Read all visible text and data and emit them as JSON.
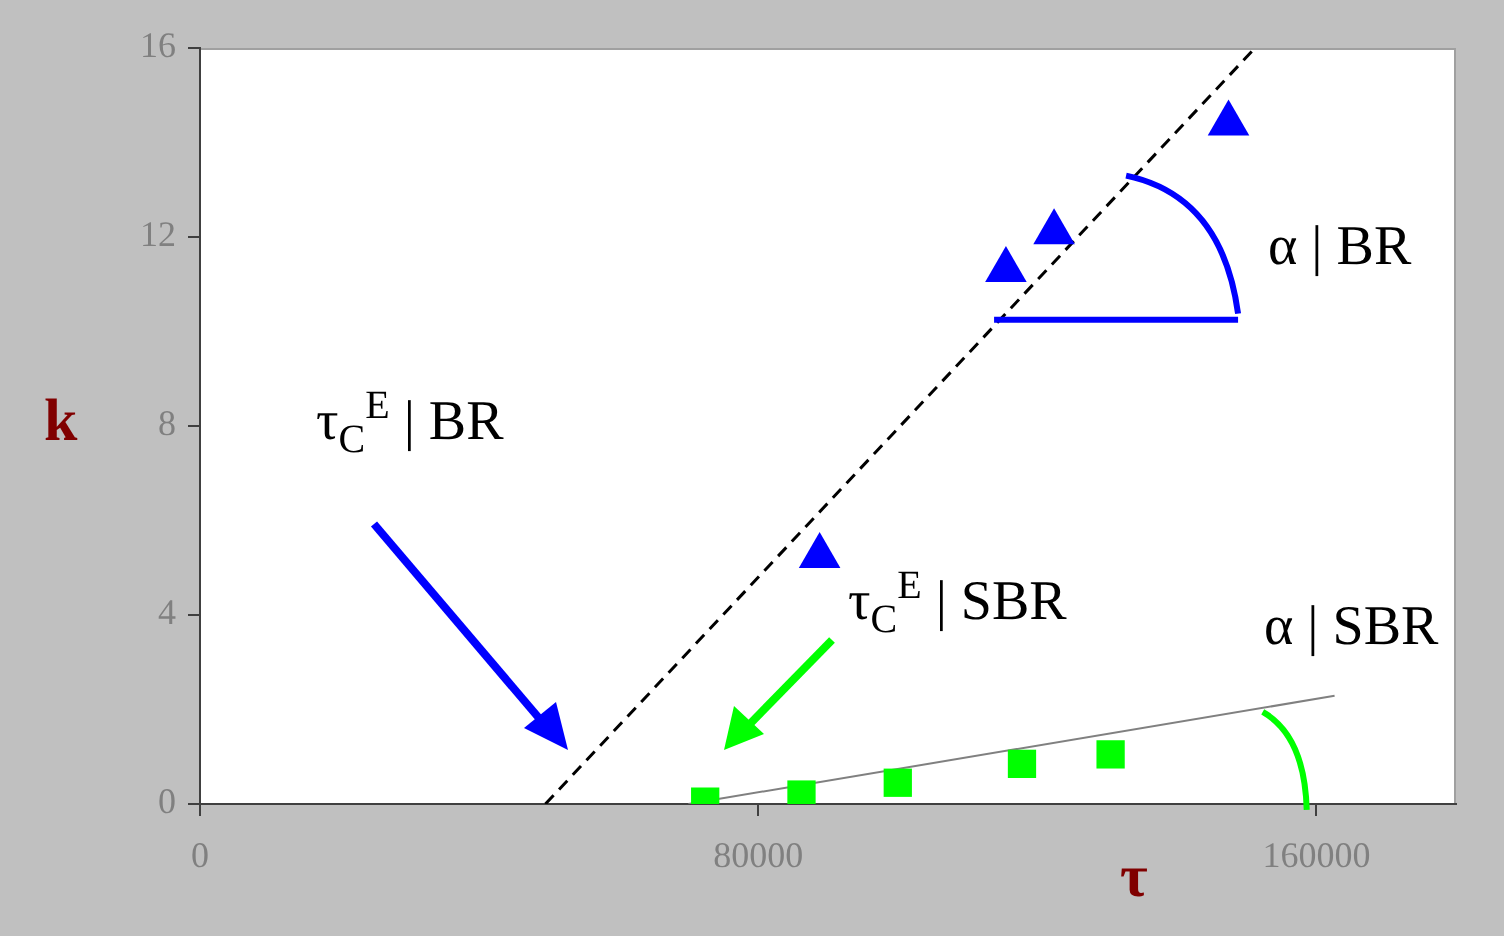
{
  "chart_data": {
    "type": "scatter",
    "xlabel": "τ",
    "ylabel": "k",
    "grid": false,
    "xlim": [
      0,
      180000
    ],
    "ylim": [
      0,
      16
    ],
    "xticks": [
      0,
      80000,
      160000
    ],
    "yticks": [
      0,
      4,
      8,
      12,
      16
    ],
    "annotations": [
      "τ$_{C}$$^{E}$ | BR",
      "τ$_{C}$$^{E}$ | SBR",
      {
        "text": "α | BR",
        "x": 113800,
        "y": 10.25
      },
      {
        "text": "α | SBR",
        "x": 152300,
        "y": 1.95
      }
    ],
    "series": [
      {
        "type": "scatter",
        "marker": "triangle",
        "color": "#0000ff",
        "x": [
          88800,
          115500,
          122400,
          147400
        ],
        "values": [
          5.25,
          11.3,
          12.1,
          14.4
        ]
      },
      {
        "type": "scatter",
        "marker": "square",
        "color": "#00ff00",
        "x": [
          72400,
          86200,
          100000,
          117800,
          130500
        ],
        "values": [
          0.05,
          0.2,
          0.45,
          0.85,
          1.05
        ]
      },
      {
        "type": "line",
        "line_style": "dashed",
        "color": "#000000",
        "x": [
          49500,
          151200
        ],
        "values": [
          0,
          16
        ]
      },
      {
        "type": "line",
        "line_style": "solid",
        "color": "#808080",
        "x": [
          70000,
          162600
        ],
        "values": [
          0,
          2.29
        ]
      }
    ]
  }
}
